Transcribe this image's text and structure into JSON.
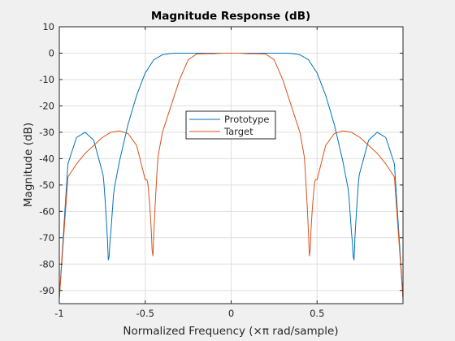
{
  "chart_data": {
    "type": "line",
    "title": "Magnitude Response (dB)",
    "xlabel": "Normalized Frequency (×π rad/sample)",
    "ylabel": "Magnitude (dB)",
    "xlim": [
      -1,
      1
    ],
    "ylim": [
      -95,
      10
    ],
    "xticks": [
      -1,
      -0.5,
      0,
      0.5
    ],
    "xtick_labels": [
      "-1",
      "-0.5",
      "0",
      "0.5"
    ],
    "yticks": [
      10,
      0,
      -10,
      -20,
      -30,
      -40,
      -50,
      -60,
      -70,
      -80,
      -90
    ],
    "ytick_labels": [
      "10",
      "0",
      "-10",
      "-20",
      "-30",
      "-40",
      "-50",
      "-60",
      "-70",
      "-80",
      "-90"
    ],
    "grid": true,
    "legend_position": "center",
    "series": [
      {
        "name": "Prototype",
        "color": "#0072bd",
        "x": [
          0,
          0.05,
          0.1,
          0.15,
          0.2,
          0.25,
          0.3,
          0.35,
          0.4,
          0.45,
          0.5,
          0.55,
          0.6,
          0.65,
          0.7,
          0.75,
          0.8,
          0.85,
          0.9,
          0.95,
          1.0
        ],
        "y": [
          0,
          0,
          0,
          0,
          0,
          0,
          0,
          -0.1,
          -0.6,
          -2.5,
          -7.5,
          -16,
          -27,
          -41,
          -58,
          -45,
          -33,
          -30,
          -32,
          -42,
          -93
        ]
      },
      {
        "name": "Target",
        "color": "#d95319",
        "x": [
          0,
          0.05,
          0.1,
          0.15,
          0.2,
          0.25,
          0.3,
          0.35,
          0.4,
          0.45,
          0.5,
          0.55,
          0.6,
          0.65,
          0.7,
          0.75,
          0.8,
          0.85,
          0.9,
          0.95,
          1.0
        ],
        "y": [
          0,
          0,
          -0.2,
          -0.2,
          -0.3,
          -2.5,
          -10,
          -20,
          -30,
          -48,
          -48,
          -35,
          -30.5,
          -29.5,
          -30,
          -32,
          -35,
          -38,
          -42,
          -47,
          -93
        ]
      }
    ],
    "notches": [
      {
        "series": "Prototype",
        "x": [
          -0.713,
          0.713
        ],
        "depth": -87
      },
      {
        "series": "Target",
        "x": [
          -0.457,
          0.457
        ],
        "depth": -87
      }
    ]
  }
}
